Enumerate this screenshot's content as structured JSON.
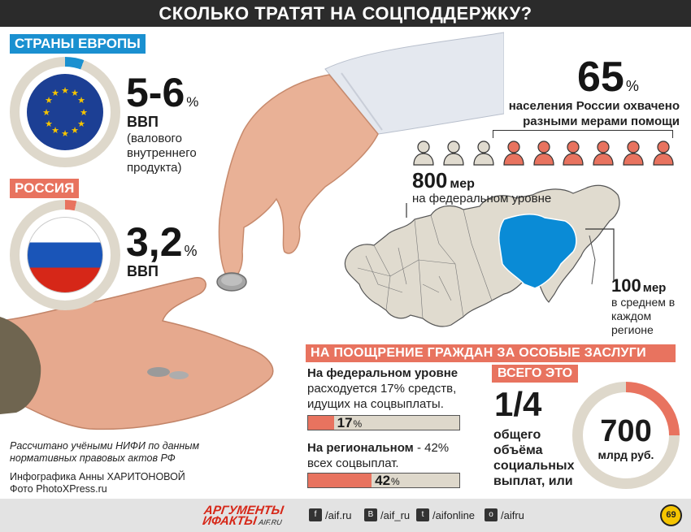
{
  "title": "СКОЛЬКО ТРАТЯТ НА СОЦПОДДЕРЖКУ?",
  "europe": {
    "tag": "СТРАНЫ ЕВРОПЫ",
    "value": "5-6",
    "unit": "%",
    "gdp": "ВВП",
    "gdp_desc": "(валового внутреннего продукта)",
    "share": 5.5
  },
  "russia": {
    "tag": "РОССИЯ",
    "value": "3,2",
    "unit": "%",
    "gdp": "ВВП",
    "share": 3.2
  },
  "population": {
    "value": "65",
    "unit": "%",
    "text": "населения России охвачено разными мерами помощи",
    "people_total": 9,
    "people_covered": 6
  },
  "federal_measures": {
    "value": "800",
    "unit": "мер",
    "sub": "на федеральном уровне"
  },
  "regional_measures": {
    "value": "100",
    "unit": "мер",
    "sub": "в среднем в каждом регионе"
  },
  "merit_banner": "НА ПООЩРЕНИЕ ГРАЖДАН ЗА ОСОБЫЕ ЗАСЛУГИ",
  "federal_spending": {
    "bold": "На федеральном уровне",
    "text": "расходуется 17% средств, идущих на соцвыплаты.",
    "bar_value": "17",
    "bar_unit": "%",
    "share": 17
  },
  "regional_spending": {
    "bold": "На региональном",
    "text": "- 42% всех соцвыплат.",
    "bar_value": "42",
    "bar_unit": "%",
    "share": 42
  },
  "total": {
    "tag": "ВСЕГО ЭТО",
    "fraction": "1/4",
    "text": "общего объёма социальных выплат, или",
    "sum_value": "700",
    "sum_unit": "млрд руб."
  },
  "note": "Рассчитано учёными НИФИ по данным нормативных правовых актов РФ",
  "credit_1": "Инфографика Анны ХАРИТОНОВОЙ",
  "credit_2": "Фото PhotoXPress.ru",
  "footer": {
    "brand_1": "АРГУМЕНТЫ",
    "brand_2": "ИФАКТЫ",
    "brand_site": "AIF.RU",
    "fb": "/aif.ru",
    "vk": "/aif_ru",
    "tw": "/aifonline",
    "ok": "/aifru",
    "logo": "69"
  },
  "colors": {
    "accent_blue": "#1a90d0",
    "accent_red": "#e8735f",
    "neutral": "#ded8cb",
    "region": "#0a8bd6"
  }
}
